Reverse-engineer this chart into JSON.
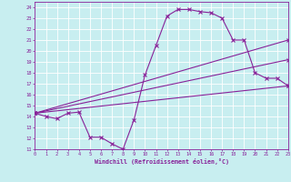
{
  "xlabel": "Windchill (Refroidissement éolien,°C)",
  "bg_color": "#c8eef0",
  "line_color": "#882299",
  "grid_color": "#ffffff",
  "xlim": [
    0,
    23
  ],
  "ylim": [
    11,
    24.5
  ],
  "yticks": [
    11,
    12,
    13,
    14,
    15,
    16,
    17,
    18,
    19,
    20,
    21,
    22,
    23,
    24
  ],
  "xticks": [
    0,
    1,
    2,
    3,
    4,
    5,
    6,
    7,
    8,
    9,
    10,
    11,
    12,
    13,
    14,
    15,
    16,
    17,
    18,
    19,
    20,
    21,
    22,
    23
  ],
  "curve_x": [
    0,
    1,
    2,
    3,
    4,
    5,
    6,
    7,
    8,
    9,
    10,
    11,
    12,
    13,
    14,
    15,
    16,
    17,
    18,
    19,
    20,
    21,
    22,
    23
  ],
  "curve_y": [
    14.3,
    14.0,
    13.8,
    14.3,
    14.4,
    12.1,
    12.1,
    11.5,
    11.0,
    13.7,
    17.8,
    20.5,
    23.2,
    23.8,
    23.8,
    23.6,
    23.5,
    23.0,
    21.0,
    21.0,
    18.0,
    17.5,
    17.5,
    16.8
  ],
  "diag_lines": [
    {
      "x": [
        0,
        23
      ],
      "y": [
        14.3,
        21.0
      ]
    },
    {
      "x": [
        0,
        23
      ],
      "y": [
        14.3,
        19.2
      ]
    },
    {
      "x": [
        0,
        23
      ],
      "y": [
        14.3,
        16.8
      ]
    }
  ]
}
